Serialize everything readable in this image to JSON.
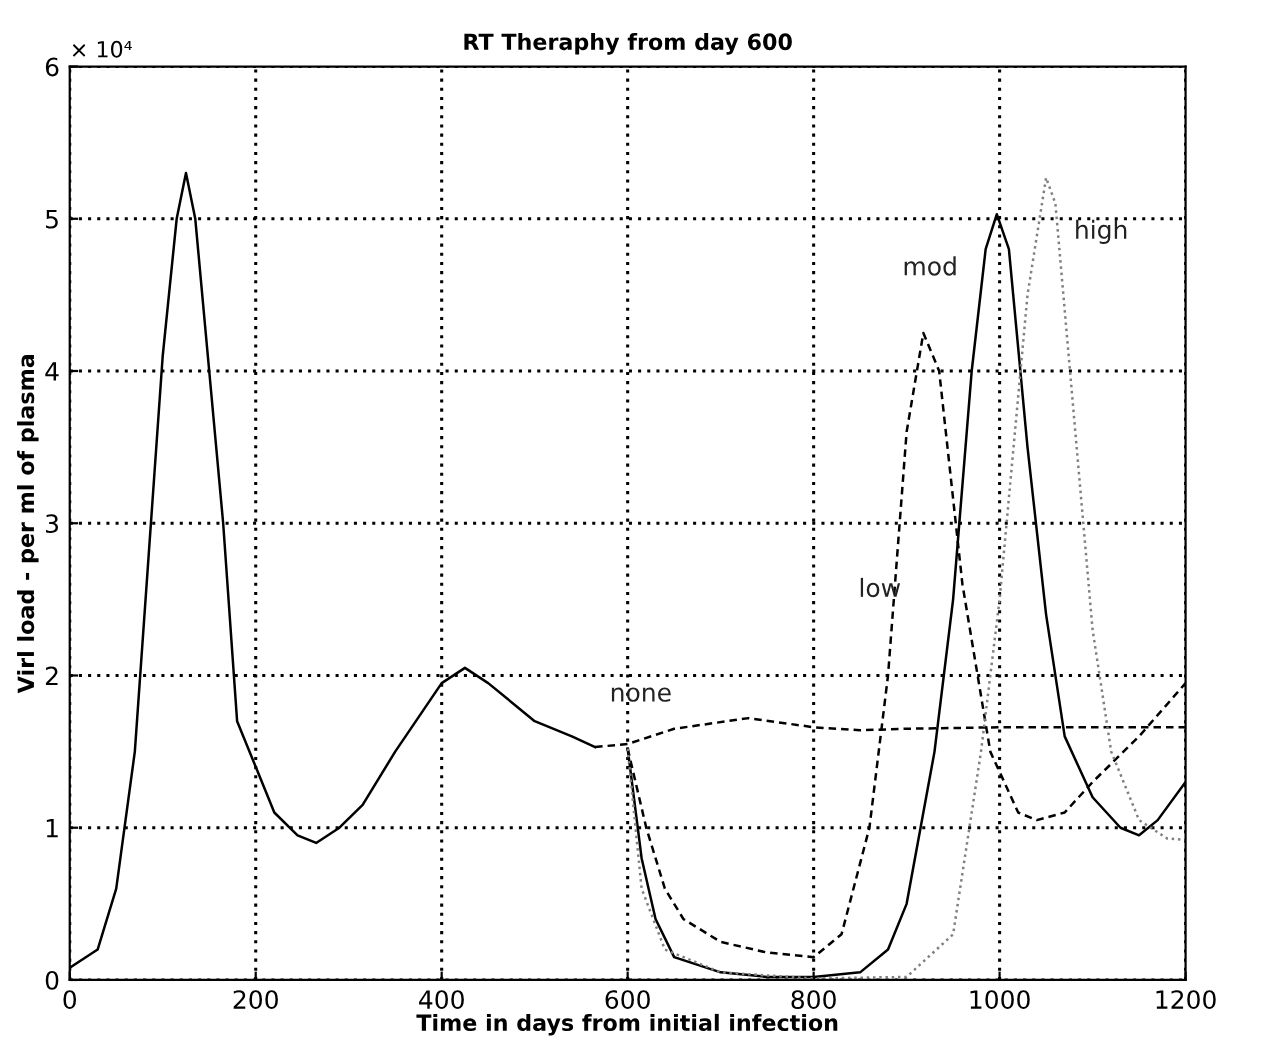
{
  "chart_data": {
    "type": "line",
    "title": "RT Theraphy from day 600",
    "xlabel": "Time in days from initial infection",
    "ylabel": "Virl load - per ml of plasma",
    "xlim": [
      0,
      1200
    ],
    "xticks": [
      0,
      200,
      400,
      600,
      800,
      1000,
      1200
    ],
    "ylim": [
      0,
      6
    ],
    "yticks": [
      0,
      1,
      2,
      3,
      4,
      5,
      6
    ],
    "grid": true,
    "annotations": [
      "× 10⁴"
    ],
    "series": [
      {
        "color": "#000000",
        "line_style": "solid",
        "x": [
          0,
          30,
          50,
          70,
          85,
          100,
          115,
          125,
          135,
          150,
          165,
          180,
          200,
          220,
          245,
          265,
          290,
          315,
          350,
          400,
          425,
          450,
          500,
          540,
          565
        ],
        "values": [
          0.08,
          0.2,
          0.6,
          1.5,
          2.8,
          4.1,
          5.0,
          5.3,
          5.0,
          4.0,
          3.0,
          1.7,
          1.4,
          1.1,
          0.95,
          0.9,
          1.0,
          1.15,
          1.5,
          1.95,
          2.05,
          1.95,
          1.7,
          1.6,
          1.53
        ]
      },
      {
        "name": "none",
        "color": "#000000",
        "line_style": "dashed",
        "x": [
          565,
          600,
          650,
          730,
          800,
          850,
          900,
          1000,
          1200
        ],
        "values": [
          1.53,
          1.55,
          1.65,
          1.72,
          1.66,
          1.64,
          1.65,
          1.66,
          1.66
        ]
      },
      {
        "name": "low",
        "color": "#000000",
        "line_style": "dashed",
        "x": [
          600,
          620,
          640,
          660,
          700,
          750,
          800,
          830,
          860,
          880,
          900,
          918,
          935,
          960,
          990,
          1020,
          1040,
          1070,
          1100,
          1150,
          1200
        ],
        "values": [
          1.52,
          1.0,
          0.6,
          0.4,
          0.25,
          0.18,
          0.15,
          0.3,
          1.0,
          2.0,
          3.6,
          4.25,
          4.0,
          2.6,
          1.5,
          1.1,
          1.05,
          1.1,
          1.3,
          1.6,
          1.95
        ]
      },
      {
        "name": "mod",
        "color": "#000000",
        "line_style": "solid",
        "x": [
          600,
          615,
          630,
          650,
          700,
          750,
          800,
          850,
          880,
          900,
          930,
          950,
          970,
          985,
          997,
          1010,
          1030,
          1050,
          1070,
          1100,
          1130,
          1150,
          1170,
          1200
        ],
        "values": [
          1.52,
          0.8,
          0.4,
          0.15,
          0.05,
          0.02,
          0.02,
          0.05,
          0.2,
          0.5,
          1.5,
          2.5,
          4.0,
          4.8,
          5.03,
          4.8,
          3.5,
          2.4,
          1.6,
          1.2,
          1.0,
          0.95,
          1.05,
          1.3
        ]
      },
      {
        "name": "high",
        "color": "#808080",
        "line_style": "dotted",
        "x": [
          600,
          615,
          640,
          700,
          800,
          900,
          950,
          980,
          1000,
          1030,
          1050,
          1060,
          1080,
          1100,
          1120,
          1150,
          1180,
          1200
        ],
        "values": [
          1.52,
          0.6,
          0.2,
          0.05,
          0.01,
          0.02,
          0.3,
          1.5,
          2.5,
          4.5,
          5.27,
          5.1,
          3.7,
          2.3,
          1.5,
          1.05,
          0.93,
          0.92
        ]
      }
    ]
  }
}
